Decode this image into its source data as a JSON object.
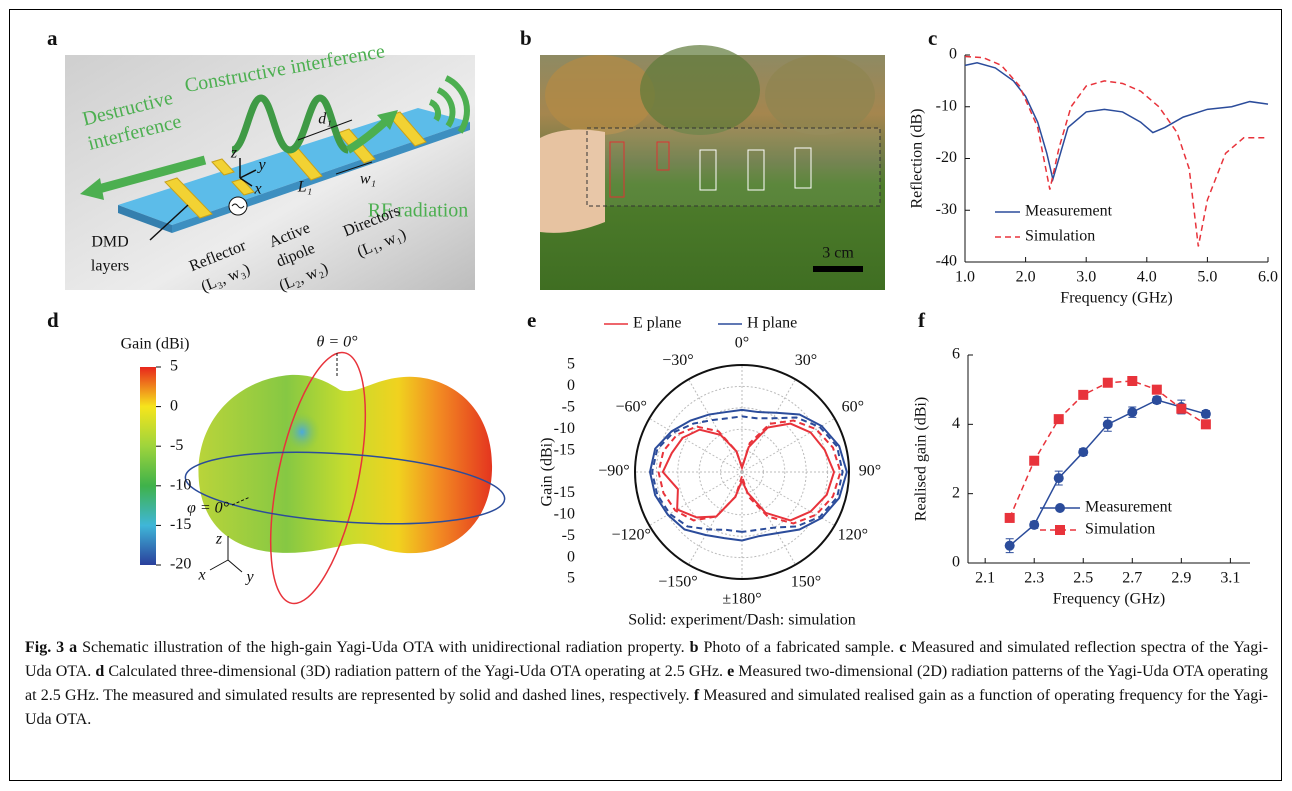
{
  "panel_labels": [
    "a",
    "b",
    "c",
    "d",
    "e",
    "f"
  ],
  "schematic": {
    "constructive": "Constructive interference",
    "destructive": [
      "Destructive",
      "interference"
    ],
    "rf": "RF radiation",
    "dmd": [
      "DMD",
      "layers"
    ],
    "reflector": [
      "Reflector",
      "(L₃, w₃)"
    ],
    "dipole": [
      "Active",
      "dipole",
      "(L₂, w₂)"
    ],
    "directors": [
      "Directors",
      "(L₁, w₁)"
    ],
    "dims": [
      "d₁",
      "L₁",
      "w₁"
    ],
    "axes": [
      "z",
      "y",
      "x"
    ]
  },
  "photo": {
    "scale_bar": "3 cm"
  },
  "pattern_3d": {
    "colorbar_label": "Gain (dBi)",
    "colorbar_lim": [
      -20,
      5
    ],
    "colorbar_ticks": [
      5,
      0,
      -5,
      -10,
      -15,
      -20
    ],
    "theta_label": "θ = 0°",
    "phi_label": "φ = 0°",
    "axes": [
      "z",
      "x",
      "y"
    ]
  },
  "chart_data": [
    {
      "type": "line",
      "xlabel": "Frequency (GHz)",
      "ylabel": "Reflection (dB)",
      "xlim": [
        1,
        6
      ],
      "xticks": [
        {
          "value": 1,
          "label": "1.0"
        },
        {
          "value": 2,
          "label": "2.0"
        },
        {
          "value": 3,
          "label": "3.0"
        },
        {
          "value": 4,
          "label": "4.0"
        },
        {
          "value": 5,
          "label": "5.0"
        },
        {
          "value": 6,
          "label": "6.0"
        }
      ],
      "ylim": [
        -40,
        0
      ],
      "yticks": [
        0,
        -10,
        -20,
        -30,
        -40
      ],
      "legend": "lower right",
      "series": [
        {
          "name": "Measurement",
          "color": "#2b4c9b",
          "dash": false,
          "x": [
            1.0,
            1.2,
            1.5,
            1.8,
            2.0,
            2.2,
            2.35,
            2.45,
            2.55,
            2.7,
            3.0,
            3.3,
            3.6,
            3.9,
            4.1,
            4.3,
            4.6,
            5.0,
            5.4,
            5.7,
            6.0
          ],
          "values": [
            -2,
            -1.5,
            -2.5,
            -5,
            -8,
            -13,
            -19,
            -24,
            -20,
            -14,
            -11,
            -10.5,
            -11,
            -13,
            -15,
            -14,
            -12,
            -10.5,
            -10,
            -9,
            -9.5
          ]
        },
        {
          "name": "Simulation",
          "color": "#e8333b",
          "dash": true,
          "x": [
            1.0,
            1.3,
            1.6,
            1.9,
            2.2,
            2.4,
            2.55,
            2.75,
            3.0,
            3.3,
            3.6,
            3.9,
            4.2,
            4.5,
            4.7,
            4.85,
            5.0,
            5.3,
            5.6,
            6.0
          ],
          "values": [
            -0.3,
            -0.5,
            -2,
            -6,
            -14,
            -26,
            -18,
            -10,
            -6,
            -5,
            -5.5,
            -7,
            -10,
            -15,
            -22,
            -37,
            -28,
            -19,
            -16,
            -16
          ]
        }
      ]
    },
    {
      "type": "polar",
      "ylabel": "Gain (dBi)",
      "note": "Solid: experiment/Dash: simulation",
      "legend": "upper center",
      "rlim": [
        -20,
        5
      ],
      "rticks": [
        -15,
        -10,
        -5,
        0,
        5
      ],
      "theta": [
        -180,
        -165,
        -150,
        -135,
        -120,
        -105,
        -90,
        -75,
        -60,
        -45,
        -30,
        -15,
        0,
        15,
        30,
        45,
        60,
        75,
        90,
        105,
        120,
        135,
        150,
        165,
        180
      ],
      "thetaticks": [
        {
          "value": -150,
          "label": "−150°"
        },
        {
          "value": -120,
          "label": "−120°"
        },
        {
          "value": -90,
          "label": "−90°"
        },
        {
          "value": -60,
          "label": "−60°"
        },
        {
          "value": -30,
          "label": "−30°"
        },
        {
          "value": 0,
          "label": "0°"
        },
        {
          "value": 30,
          "label": "30°"
        },
        {
          "value": 60,
          "label": "60°"
        },
        {
          "value": 90,
          "label": "90°"
        },
        {
          "value": 120,
          "label": "120°"
        },
        {
          "value": 150,
          "label": "150°"
        },
        {
          "value": 180,
          "label": "±180°"
        }
      ],
      "series": [
        {
          "name": "E plane",
          "color": "#e8333b",
          "measured": [
            -18,
            -14,
            -8,
            -5,
            -2.5,
            -4.5,
            -1.5,
            -3,
            -4,
            -6,
            -10,
            -15,
            -19,
            -14,
            -8,
            -4,
            -1.5,
            0,
            1.5,
            0.5,
            -1.5,
            -4,
            -9,
            -15,
            -18
          ],
          "simulated": [
            -19,
            -14,
            -8,
            -4,
            -2,
            -1,
            -0.5,
            -1,
            -2.5,
            -5,
            -9,
            -15,
            -19,
            -13,
            -7,
            -3,
            0,
            2,
            3,
            2,
            0,
            -3,
            -8,
            -14,
            -19
          ]
        },
        {
          "name": "H plane",
          "color": "#2b4c9b",
          "measured": [
            -4,
            -4,
            -3,
            -1,
            0,
            1,
            1.5,
            1,
            -1,
            -3,
            -4.5,
            -5.5,
            -5.5,
            -5.5,
            -4,
            -1,
            1.5,
            3.5,
            4.5,
            3.5,
            1.5,
            -1,
            -3.5,
            -4.5,
            -4
          ],
          "simulated": [
            -6,
            -6,
            -4.5,
            -2,
            -0.5,
            0.5,
            1,
            0.5,
            -1.5,
            -4,
            -6,
            -7,
            -7,
            -7,
            -5.5,
            -2,
            1,
            3,
            3.5,
            3,
            1,
            -2,
            -5,
            -6,
            -6
          ]
        }
      ]
    },
    {
      "type": "line",
      "xlabel": "Frequency (GHz)",
      "ylabel": "Realised gain (dBi)",
      "xlim": [
        2.03,
        3.18
      ],
      "xticks": [
        2.1,
        2.3,
        2.5,
        2.7,
        2.9,
        3.1
      ],
      "ylim": [
        0,
        6
      ],
      "yticks": [
        0,
        2,
        4,
        6
      ],
      "legend": "lower right",
      "x": [
        2.2,
        2.3,
        2.4,
        2.5,
        2.6,
        2.7,
        2.8,
        2.9,
        3.0
      ],
      "series": [
        {
          "name": "Measurement",
          "color": "#2b4c9b",
          "dash": false,
          "marker": "circle",
          "values": [
            0.5,
            1.1,
            2.45,
            3.2,
            4.0,
            4.35,
            4.7,
            4.5,
            4.3
          ],
          "errors": [
            0.2,
            0.1,
            0.2,
            0.1,
            0.2,
            0.15,
            0.1,
            0.2,
            0.1
          ]
        },
        {
          "name": "Simulation",
          "color": "#e8333b",
          "dash": true,
          "marker": "square",
          "values": [
            1.3,
            2.95,
            4.15,
            4.85,
            5.2,
            5.25,
            5.0,
            4.45,
            4.0
          ]
        }
      ]
    }
  ],
  "caption": [
    {
      "text": "Fig. 3 a",
      "bold": true
    },
    {
      "text": " Schematic illustration of the high-gain Yagi-Uda OTA with unidirectional radiation property. ",
      "bold": false
    },
    {
      "text": "b",
      "bold": true
    },
    {
      "text": " Photo of a fabricated sample. ",
      "bold": false
    },
    {
      "text": "c",
      "bold": true
    },
    {
      "text": " Measured and simulated reflection spectra of the Yagi-Uda OTA. ",
      "bold": false
    },
    {
      "text": "d",
      "bold": true
    },
    {
      "text": " Calculated three-dimensional (3D) radiation pattern of the Yagi-Uda OTA operating at 2.5 GHz. ",
      "bold": false
    },
    {
      "text": "e",
      "bold": true
    },
    {
      "text": " Measured two-dimensional (2D) radiation patterns of the Yagi-Uda OTA operating at 2.5 GHz. The measured and simulated results are represented by solid and dashed lines, respectively. ",
      "bold": false
    },
    {
      "text": "f",
      "bold": true
    },
    {
      "text": " Measured and simulated realised gain as a function of operating frequency for the Yagi-Uda OTA.",
      "bold": false
    }
  ]
}
